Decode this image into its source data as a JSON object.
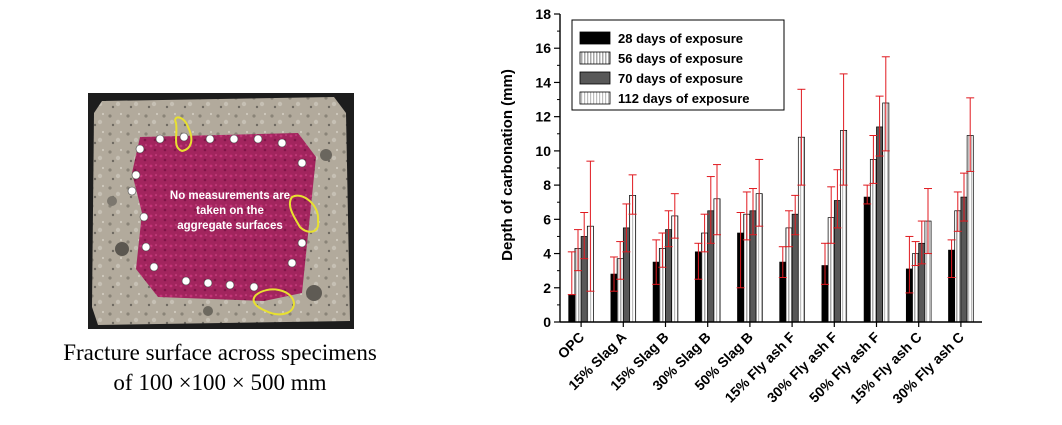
{
  "photo": {
    "annotation": [
      "No measurements are",
      "taken on the",
      "aggregate surfaces"
    ],
    "caption_lines": [
      "Fracture surface across specimens",
      "of 100 ×100 × 500 mm"
    ],
    "colors": {
      "stain": "#a2255e",
      "concrete": "#b2aa9c",
      "background": "#1d1d1d",
      "aggregate_outline": "#e8e030",
      "markers": "#ffffff"
    }
  },
  "chart_data": {
    "type": "bar",
    "title": "",
    "xlabel": "",
    "ylabel": "Depth of carbonation (mm)",
    "ylim": [
      0,
      18
    ],
    "yticks": [
      0,
      2,
      4,
      6,
      8,
      10,
      12,
      14,
      16,
      18
    ],
    "grid": false,
    "legend_position": "top-left",
    "categories": [
      "OPC",
      "15% Slag A",
      "15% Slag B",
      "30% Slag B",
      "50% Slag B",
      "15% Fly ash F",
      "30% Fly ash F",
      "50% Fly ash F",
      "15% Fly ash C",
      "30% Fly ash C"
    ],
    "series": [
      {
        "name": "28 days of exposure",
        "color": "#000000",
        "pattern": "solid",
        "values": [
          1.6,
          2.8,
          3.5,
          4.1,
          5.2,
          3.5,
          3.3,
          7.3,
          3.1,
          4.2
        ],
        "err_high": [
          4.1,
          3.8,
          4.8,
          4.6,
          6.4,
          4.4,
          4.6,
          8.0,
          5.0,
          4.8
        ],
        "err_low": [
          1.6,
          1.8,
          2.2,
          2.5,
          2.0,
          2.6,
          2.2,
          6.9,
          1.7,
          2.6
        ]
      },
      {
        "name": "56 days of exposure",
        "color": "#a8a8a8",
        "pattern": "striped",
        "values": [
          4.3,
          3.7,
          4.3,
          5.2,
          6.3,
          5.5,
          6.1,
          9.5,
          4.0,
          6.5
        ],
        "err_high": [
          5.4,
          4.7,
          5.2,
          6.3,
          7.6,
          6.5,
          7.9,
          10.9,
          4.7,
          7.6
        ],
        "err_low": [
          3.0,
          2.5,
          3.2,
          4.1,
          4.8,
          4.4,
          4.6,
          8.1,
          3.3,
          5.3
        ]
      },
      {
        "name": "70 days of exposure",
        "color": "#585858",
        "pattern": "solid",
        "values": [
          5.0,
          5.5,
          5.4,
          6.5,
          6.5,
          6.3,
          7.1,
          11.4,
          4.6,
          7.3
        ],
        "err_high": [
          6.4,
          6.9,
          6.5,
          8.5,
          7.8,
          7.4,
          8.9,
          13.2,
          5.9,
          8.7
        ],
        "err_low": [
          3.7,
          4.1,
          4.4,
          4.6,
          5.1,
          5.1,
          5.5,
          9.7,
          3.4,
          5.9
        ]
      },
      {
        "name": "112 days of exposure",
        "color": "#ececec",
        "pattern": "striped",
        "values": [
          5.6,
          7.4,
          6.2,
          7.2,
          7.5,
          10.8,
          11.2,
          12.8,
          5.9,
          10.9
        ],
        "err_high": [
          9.4,
          8.6,
          7.5,
          9.2,
          9.5,
          13.6,
          14.5,
          15.5,
          7.8,
          13.1
        ],
        "err_low": [
          1.8,
          6.3,
          4.9,
          5.1,
          5.6,
          8.0,
          8.0,
          10.0,
          4.0,
          8.8
        ]
      }
    ],
    "error_bar_color": "#e0191f"
  }
}
